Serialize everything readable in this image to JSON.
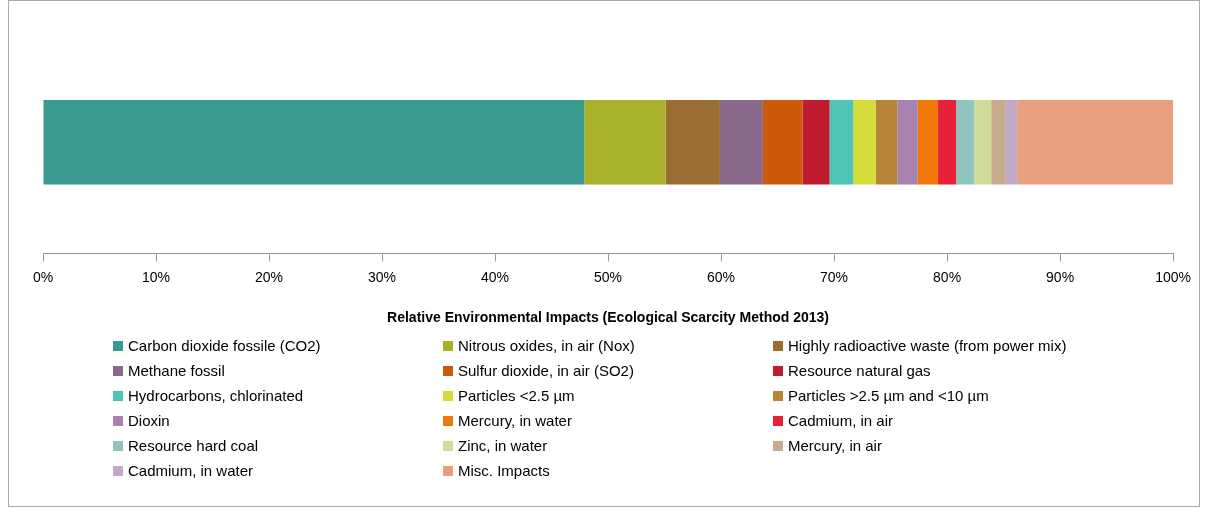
{
  "chart_data": {
    "type": "bar",
    "orientation": "horizontal",
    "stacked": true,
    "categories": [
      null
    ],
    "xlabel": "Relative Environmental Impacts (Ecological Scarcity Method 2013)",
    "xlim": [
      0,
      100
    ],
    "xticks": [
      {
        "value": 0,
        "label": "0%"
      },
      {
        "value": 10,
        "label": "10%"
      },
      {
        "value": 20,
        "label": "20%"
      },
      {
        "value": 30,
        "label": "30%"
      },
      {
        "value": 40,
        "label": "40%"
      },
      {
        "value": 50,
        "label": "50%"
      },
      {
        "value": 60,
        "label": "60%"
      },
      {
        "value": 70,
        "label": "70%"
      },
      {
        "value": 80,
        "label": "80%"
      },
      {
        "value": 90,
        "label": "90%"
      },
      {
        "value": 100,
        "label": "100%"
      }
    ],
    "tick_labels": "x",
    "legend": "bottom",
    "series": [
      {
        "name": "Carbon dioxide fossile (CO2)",
        "color": "#3a9a8e",
        "values": [
          47.9
        ]
      },
      {
        "name": "Nitrous oxides, in air (Nox)",
        "color": "#a8b02c",
        "values": [
          7.2
        ]
      },
      {
        "name": "Highly radioactive waste (from power mix)",
        "color": "#9a6e32",
        "values": [
          4.8
        ]
      },
      {
        "name": "Methane fossil",
        "color": "#8a6a8a",
        "values": [
          3.8
        ]
      },
      {
        "name": "Sulfur dioxide, in air (SO2)",
        "color": "#cc5a08",
        "values": [
          3.5
        ]
      },
      {
        "name": "Resource natural gas",
        "color": "#c01c30",
        "values": [
          2.4
        ]
      },
      {
        "name": "Hydrocarbons, chlorinated",
        "color": "#4ec4b4",
        "values": [
          2.1
        ]
      },
      {
        "name": "Particles <2.5 µm",
        "color": "#d4dc3a",
        "values": [
          2.0
        ]
      },
      {
        "name": "Particles >2.5 µm and <10 µm",
        "color": "#b8843a",
        "values": [
          1.9
        ]
      },
      {
        "name": "Dioxin",
        "color": "#a882b0",
        "values": [
          1.8
        ]
      },
      {
        "name": "Mercury, in water",
        "color": "#f07808",
        "values": [
          1.8
        ]
      },
      {
        "name": "Cadmium, in air",
        "color": "#e82038",
        "values": [
          1.6
        ]
      },
      {
        "name": "Resource hard coal",
        "color": "#90c4be",
        "values": [
          1.6
        ]
      },
      {
        "name": "Zinc, in water",
        "color": "#d0dc9a",
        "values": [
          1.5
        ]
      },
      {
        "name": "Mercury, in air",
        "color": "#c8aa8c",
        "values": [
          1.3
        ]
      },
      {
        "name": "Cadmium, in water",
        "color": "#c0aac8",
        "values": [
          1.0
        ]
      },
      {
        "name": "Misc. Impacts",
        "color": "#e8a080",
        "values": [
          13.8
        ]
      }
    ]
  }
}
